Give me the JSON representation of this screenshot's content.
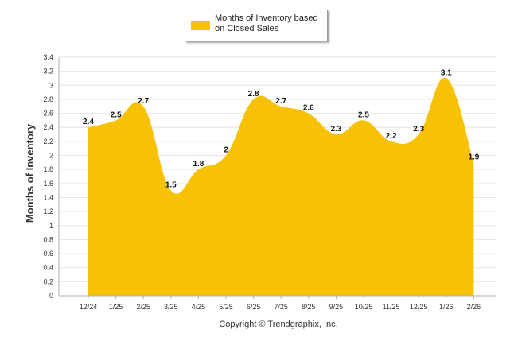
{
  "legend": {
    "label": "Months of Inventory based on Closed Sales"
  },
  "colors": {
    "area": "#f7c206",
    "grid": "#e6e6e6",
    "axis": "#b0b0b0"
  },
  "copyright": "Copyright © Trendgraphix, Inc.",
  "chart_data": {
    "type": "area",
    "title": "",
    "xlabel": "",
    "ylabel": "Months of Inventory",
    "ylim": [
      0,
      3.4
    ],
    "ytick_step": 0.2,
    "ytick_labels": [
      "0",
      "0.2",
      "0.4",
      "0.6",
      "0.8",
      "1",
      "1.2",
      "1.4",
      "1.6",
      "1.8",
      "2",
      "2.2",
      "2.4",
      "2.6",
      "2.8",
      "3",
      "3.2",
      "3.4"
    ],
    "categories": [
      "12/24",
      "1/25",
      "2/25",
      "3/25",
      "4/25",
      "5/25",
      "6/25",
      "7/25",
      "8/25",
      "9/25",
      "10/25",
      "11/25",
      "12/25",
      "1/26",
      "2/26"
    ],
    "series": [
      {
        "name": "Months of Inventory based on Closed Sales",
        "values": [
          2.4,
          2.5,
          2.7,
          1.5,
          1.8,
          2,
          2.8,
          2.7,
          2.6,
          2.3,
          2.5,
          2.2,
          2.3,
          3.1,
          1.9
        ],
        "labels": [
          "2.4",
          "2.5",
          "2.7",
          "1.5",
          "1.8",
          "2",
          "2.8",
          "2.7",
          "2.6",
          "2.3",
          "2.5",
          "2.2",
          "2.3",
          "3.1",
          "1.9"
        ]
      }
    ],
    "grid": true,
    "legend": "top-center"
  }
}
